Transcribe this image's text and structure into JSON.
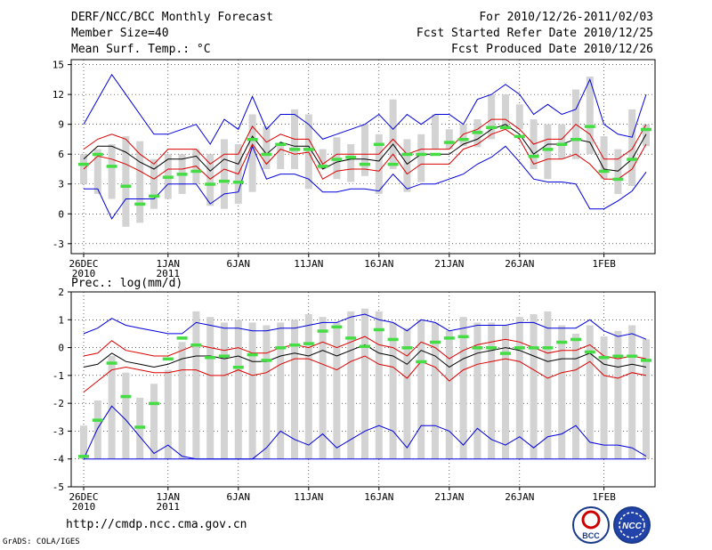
{
  "header": {
    "title": "DERF/NCC/BCC Monthly Forecast",
    "member_size": "Member Size=40",
    "variable": "Mean Surf. Temp.: °C",
    "period": "For 2010/12/26-2011/02/03",
    "start": "Fcst Started Refer Date 2010/12/25",
    "produced": "Fcst Produced Date 2010/12/26"
  },
  "footer": {
    "url": "http://cmdp.ncc.cma.gov.cn",
    "grads": "GrADS: COLA/IGES",
    "logo1": "BCC",
    "logo2": "NCC"
  },
  "colors": {
    "max_min": "#0000dd",
    "percentile": "#dd0000",
    "mean": "#000000",
    "marker": "#44dd44",
    "box": "#d3d3d3"
  },
  "chart_data": [
    {
      "type": "box-and-line",
      "title": "Mean Surf. Temp.: °C",
      "ylim": [
        -4,
        15.5
      ],
      "yticks": [
        -3,
        0,
        3,
        6,
        9,
        12,
        15
      ],
      "xticks": [
        {
          "day": 0,
          "label": "26DEC",
          "sub": "2010"
        },
        {
          "day": 6,
          "label": "1JAN",
          "sub": "2011"
        },
        {
          "day": 11,
          "label": "6JAN"
        },
        {
          "day": 16,
          "label": "11JAN"
        },
        {
          "day": 21,
          "label": "16JAN"
        },
        {
          "day": 26,
          "label": "21JAN"
        },
        {
          "day": 31,
          "label": "26JAN"
        },
        {
          "day": 37,
          "label": "1FEB"
        }
      ],
      "max": [
        9,
        11.5,
        14,
        12,
        10,
        8,
        8,
        8.5,
        9,
        7,
        9.5,
        8.5,
        11.8,
        8.5,
        10,
        10,
        9,
        7.5,
        8,
        8.5,
        9,
        10,
        8.5,
        10,
        9,
        10,
        10,
        9,
        11.5,
        12,
        13,
        12,
        10,
        11,
        10,
        10.5,
        13.5,
        9,
        8,
        7.7,
        12
      ],
      "p_hi": [
        6.5,
        7.5,
        8,
        7.5,
        6,
        5,
        6.5,
        6.5,
        6.5,
        5,
        6,
        6,
        8.8,
        7.2,
        8,
        7.5,
        7.5,
        5,
        6,
        6,
        6,
        6,
        7.5,
        6,
        6.5,
        6.5,
        6.5,
        8,
        8.5,
        9.5,
        9.5,
        8.5,
        7,
        7.5,
        7.5,
        9,
        8,
        5.5,
        5.5,
        6.5,
        9
      ],
      "mean": [
        5.5,
        6.8,
        6.8,
        6.2,
        5.2,
        4.5,
        5.5,
        5.5,
        5.8,
        4.3,
        5.5,
        5,
        7.8,
        6,
        7.2,
        6.8,
        6.8,
        4.5,
        5.2,
        5.5,
        5.5,
        5.3,
        7,
        5,
        6,
        6,
        6,
        7,
        7.5,
        8.5,
        9,
        8,
        6,
        7,
        7,
        7.5,
        7.2,
        4.5,
        4.3,
        5.5,
        8
      ],
      "p_lo": [
        4.5,
        5.8,
        5.5,
        5,
        4.3,
        3.5,
        4.5,
        4.5,
        4.8,
        3.5,
        4.5,
        4,
        7,
        5,
        6.5,
        6,
        6.2,
        3.5,
        4.3,
        4.5,
        4.5,
        4.3,
        6,
        4,
        5,
        5,
        5,
        6.5,
        7,
        8,
        8.5,
        7.5,
        5,
        5.5,
        5.5,
        6,
        5,
        3.5,
        3.5,
        4.5,
        7
      ],
      "min": [
        2.5,
        2.5,
        -0.5,
        1.5,
        1.5,
        1.5,
        3,
        3,
        3,
        1,
        2,
        2.2,
        6.8,
        3.5,
        4,
        4,
        3.5,
        2.2,
        2.2,
        2.5,
        2.5,
        2.3,
        4,
        2.5,
        3,
        3,
        3.5,
        4,
        5,
        5.7,
        6.8,
        5.2,
        3.5,
        3.2,
        3.2,
        3,
        0.5,
        0.5,
        1.3,
        2.3,
        4.2
      ],
      "box_hi": [
        6,
        6.5,
        7,
        7.8,
        7.3,
        5.5,
        6,
        6,
        6.5,
        6,
        7.5,
        7,
        10,
        8.8,
        7,
        10.5,
        10,
        6.5,
        7.7,
        7,
        9,
        8,
        11.5,
        7.5,
        8,
        10,
        8.5,
        9,
        9.5,
        12,
        12,
        11,
        9.5,
        9,
        9,
        12.5,
        13.8,
        7.8,
        6.5,
        10.5,
        9
      ],
      "box_lo": [
        3,
        2,
        1.5,
        -1.3,
        -0.9,
        0.5,
        1.5,
        2,
        3,
        0.8,
        0.5,
        1,
        2.2,
        4.5,
        4.5,
        4.5,
        2.5,
        4.5,
        3.5,
        3.2,
        3.8,
        2,
        4.5,
        2.2,
        3.2,
        6.5,
        6.5,
        6.8,
        6.7,
        7.5,
        8.5,
        8.5,
        4.5,
        3.5,
        5.5,
        5.5,
        6,
        3.5,
        2,
        2.8,
        6.8
      ],
      "marker": [
        5,
        6,
        4.8,
        2.8,
        1,
        1.8,
        3.7,
        4,
        4.3,
        3,
        3.3,
        3.2,
        7.5,
        6,
        7,
        6.5,
        6.5,
        4.8,
        5.5,
        5.7,
        5,
        7,
        5,
        6,
        6,
        6,
        7.2,
        7.5,
        8.2,
        8.7,
        8.7,
        7.8,
        5.8,
        6.5,
        7,
        7.5,
        8.8,
        4.3,
        3.5,
        5.5,
        8.5
      ]
    },
    {
      "type": "box-and-line",
      "title": "Prec.: log(mm/d)",
      "ylim": [
        -5,
        2
      ],
      "yticks": [
        -5,
        -4,
        -3,
        -2,
        -1,
        0,
        1,
        2
      ],
      "xticks": [
        {
          "day": 0,
          "label": "26DEC",
          "sub": "2010"
        },
        {
          "day": 6,
          "label": "1JAN",
          "sub": "2011"
        },
        {
          "day": 11,
          "label": "6JAN"
        },
        {
          "day": 16,
          "label": "11JAN"
        },
        {
          "day": 21,
          "label": "16JAN"
        },
        {
          "day": 26,
          "label": "21JAN"
        },
        {
          "day": 31,
          "label": "26JAN"
        },
        {
          "day": 37,
          "label": "1FEB"
        }
      ],
      "max": [
        0.5,
        0.7,
        1.05,
        0.8,
        0.7,
        0.6,
        0.5,
        0.5,
        0.9,
        0.8,
        0.7,
        0.7,
        0.6,
        0.6,
        0.7,
        0.7,
        0.8,
        0.9,
        0.9,
        1.1,
        1.2,
        1,
        0.9,
        0.6,
        1,
        0.9,
        0.6,
        0.7,
        0.8,
        0.8,
        0.8,
        0.9,
        0.9,
        0.7,
        0.7,
        0.7,
        1,
        0.6,
        0.4,
        0.5,
        0.3
      ],
      "p_hi": [
        -0.3,
        -0.2,
        0.25,
        -0.1,
        -0.2,
        -0.3,
        -0.3,
        -0.1,
        0.1,
        0,
        -0.1,
        0,
        -0.2,
        -0.2,
        0,
        0.1,
        0,
        0.2,
        0,
        0.2,
        0.4,
        0.1,
        0,
        -0.3,
        0.2,
        0,
        -0.4,
        -0.1,
        0.1,
        0.2,
        0.3,
        0.2,
        0,
        -0.2,
        -0.1,
        -0.1,
        0.1,
        -0.3,
        -0.4,
        -0.3,
        -0.4
      ],
      "mean": [
        -0.7,
        -0.6,
        -0.2,
        -0.5,
        -0.6,
        -0.7,
        -0.6,
        -0.4,
        -0.3,
        -0.3,
        -0.4,
        -0.3,
        -0.5,
        -0.5,
        -0.3,
        -0.2,
        -0.3,
        -0.1,
        -0.3,
        -0.1,
        0.1,
        -0.2,
        -0.3,
        -0.6,
        -0.1,
        -0.3,
        -0.7,
        -0.4,
        -0.2,
        -0.1,
        0,
        -0.1,
        -0.3,
        -0.5,
        -0.4,
        -0.4,
        -0.2,
        -0.6,
        -0.7,
        -0.6,
        -0.7
      ],
      "p_lo": [
        -1.6,
        -1.2,
        -0.8,
        -0.7,
        -0.8,
        -0.9,
        -0.9,
        -0.8,
        -0.8,
        -1,
        -1,
        -0.8,
        -1,
        -0.9,
        -0.6,
        -0.4,
        -0.4,
        -0.6,
        -0.8,
        -0.5,
        -0.3,
        -0.6,
        -0.7,
        -1.1,
        -0.5,
        -0.7,
        -1.2,
        -0.8,
        -0.6,
        -0.5,
        -0.4,
        -0.5,
        -0.8,
        -1.1,
        -0.9,
        -0.8,
        -0.5,
        -1,
        -1.1,
        -0.9,
        -1
      ],
      "min": [
        -4,
        -2.9,
        -2.1,
        -2.6,
        -3.2,
        -3.8,
        -3.5,
        -3.9,
        -4,
        -4,
        -4,
        -4,
        -4,
        -3.6,
        -3,
        -3.3,
        -3.5,
        -3.1,
        -3.6,
        -3.3,
        -3,
        -2.8,
        -3,
        -3.6,
        -2.8,
        -2.8,
        -3,
        -3.5,
        -2.9,
        -3.3,
        -3.5,
        -3.2,
        -3.6,
        -3.2,
        -3.1,
        -2.8,
        -3.4,
        -3.5,
        -3.5,
        -3.6,
        -3.9
      ],
      "box_hi": [
        -2.8,
        -1.9,
        -0.3,
        -0.9,
        -1.8,
        -1.3,
        -0.8,
        0.2,
        1.3,
        1.1,
        0.9,
        1,
        0.9,
        0.8,
        0.9,
        1,
        1.2,
        1.1,
        0.9,
        1.3,
        1.4,
        1.3,
        0.9,
        0.7,
        1,
        0.9,
        0.6,
        1.1,
        0.9,
        0.9,
        0.8,
        1.1,
        1.2,
        1.3,
        0.8,
        0.5,
        0.8,
        0.4,
        0.6,
        0.8,
        0.3
      ],
      "box_lo": [
        -4,
        -4,
        -4,
        -4,
        -4,
        -4,
        -4,
        -4,
        -4,
        -4,
        -4,
        -4,
        -4,
        -4,
        -4,
        -4,
        -4,
        -4,
        -4,
        -4,
        -4,
        -4,
        -4,
        -4,
        -4,
        -4,
        -4,
        -4,
        -4,
        -4,
        -4,
        -4,
        -4,
        -4,
        -4,
        -4,
        -4,
        -4,
        -4,
        -4,
        -4
      ],
      "marker": [
        -3.9,
        -2.6,
        -0.55,
        -1.75,
        -2.85,
        -2,
        -0.4,
        0.35,
        0.1,
        -0.35,
        -0.3,
        -0.7,
        -0.25,
        -0.45,
        0,
        0.1,
        0.15,
        0.6,
        0.75,
        0.35,
        0.05,
        0.65,
        0.3,
        0,
        -0.5,
        0.2,
        0.35,
        0.4,
        0,
        0,
        -0.2,
        0,
        0,
        0,
        0.2,
        0.3,
        -0.15,
        -0.35,
        -0.3,
        -0.3,
        -0.45
      ]
    }
  ]
}
